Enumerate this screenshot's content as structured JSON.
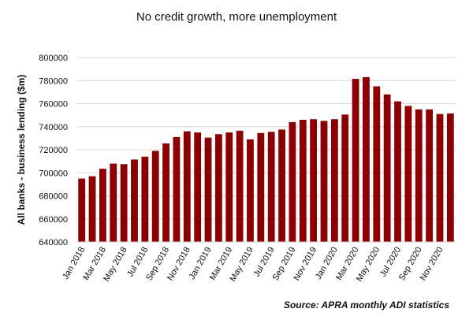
{
  "chart_data": {
    "type": "bar",
    "title": "No credit growth, more unemployment",
    "ylabel": "All banks - business lending ($m)",
    "xlabel": "",
    "source": "Source: APRA monthly ADI statistics",
    "ylim": [
      640000,
      800000
    ],
    "yticks": [
      640000,
      660000,
      680000,
      700000,
      720000,
      740000,
      760000,
      780000,
      800000
    ],
    "ytick_labels": [
      "640000",
      "660000",
      "680000",
      "700000",
      "720000",
      "740000",
      "760000",
      "780000",
      "800000"
    ],
    "x_tick_labels": [
      "Jan 2018",
      "Mar 2018",
      "May 2018",
      "Jul 2018",
      "Sep 2018",
      "Nov 2018",
      "Jan 2019",
      "Mar 2019",
      "May 2019",
      "Jul 2019",
      "Sep 2019",
      "Nov 2019",
      "Jan 2020",
      "Mar 2020",
      "May 2020",
      "Jul 2020",
      "Sep 2020",
      "Nov 2020"
    ],
    "categories": [
      "Jan 2018",
      "Feb 2018",
      "Mar 2018",
      "Apr 2018",
      "May 2018",
      "Jun 2018",
      "Jul 2018",
      "Aug 2018",
      "Sep 2018",
      "Oct 2018",
      "Nov 2018",
      "Dec 2018",
      "Jan 2019",
      "Feb 2019",
      "Mar 2019",
      "Apr 2019",
      "May 2019",
      "Jun 2019",
      "Jul 2019",
      "Aug 2019",
      "Sep 2019",
      "Oct 2019",
      "Nov 2019",
      "Dec 2019",
      "Jan 2020",
      "Feb 2020",
      "Mar 2020",
      "Apr 2020",
      "May 2020",
      "Jun 2020",
      "Jul 2020",
      "Aug 2020",
      "Sep 2020",
      "Oct 2020",
      "Nov 2020",
      "Dec 2020"
    ],
    "values": [
      695000,
      697000,
      703500,
      708000,
      707500,
      711500,
      714000,
      719000,
      725500,
      731000,
      736000,
      735000,
      730500,
      733500,
      735000,
      736500,
      729000,
      734500,
      735500,
      737500,
      744000,
      746000,
      746500,
      745000,
      746500,
      750500,
      781500,
      783000,
      775000,
      768000,
      762000,
      758000,
      755000,
      755000,
      751000,
      751500
    ],
    "bar_color": "#8b0000",
    "grid": true,
    "legend": "none"
  }
}
